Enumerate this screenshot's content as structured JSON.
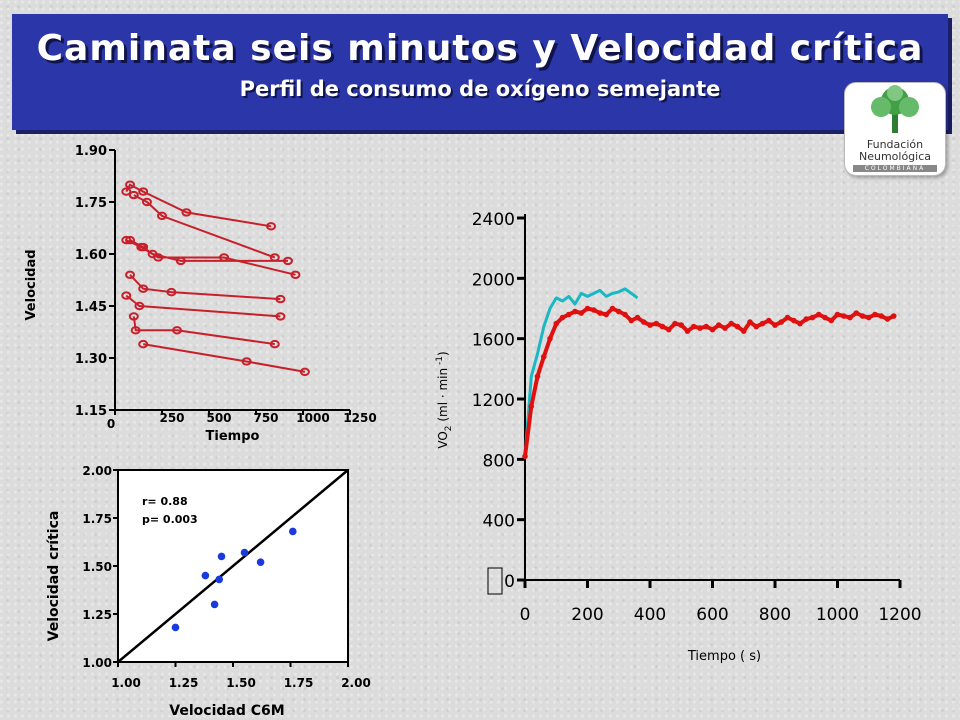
{
  "header": {
    "title": "Caminata seis minutos y Velocidad crítica",
    "subtitle": "Perfil de consumo de oxígeno semejante"
  },
  "logo": {
    "line1": "Fundación",
    "line2": "Neumológica",
    "line3": "COLOMBIANA",
    "icon": "tree-icon"
  },
  "colors": {
    "banner": "#2b36a8",
    "red": "#e01010",
    "darkred": "#c8202a",
    "cyan": "#1ab8c4",
    "blue": "#1a3adb"
  },
  "chart_data": [
    {
      "type": "scatter",
      "title": "",
      "xlabel": "Tiempo",
      "ylabel": "Velocidad",
      "xlim": [
        0,
        1250
      ],
      "ylim": [
        1.15,
        1.9
      ],
      "x_ticks": [
        "0",
        "250",
        "500",
        "750",
        "1000",
        "1250"
      ],
      "y_ticks": [
        "1.90",
        "1.75",
        "1.60",
        "1.45",
        "1.30",
        "1.15"
      ],
      "series": [
        {
          "points": [
            [
              60,
              1.78
            ],
            [
              80,
              1.8
            ],
            [
              150,
              1.78
            ],
            [
              380,
              1.72
            ],
            [
              830,
              1.68
            ]
          ]
        },
        {
          "points": [
            [
              100,
              1.77
            ],
            [
              170,
              1.75
            ],
            [
              250,
              1.71
            ],
            [
              850,
              1.59
            ]
          ]
        },
        {
          "points": [
            [
              80,
              1.64
            ],
            [
              150,
              1.62
            ],
            [
              200,
              1.6
            ],
            [
              350,
              1.58
            ],
            [
              920,
              1.58
            ]
          ]
        },
        {
          "points": [
            [
              60,
              1.64
            ],
            [
              140,
              1.62
            ],
            [
              230,
              1.59
            ],
            [
              580,
              1.59
            ],
            [
              960,
              1.54
            ]
          ]
        },
        {
          "points": [
            [
              80,
              1.54
            ],
            [
              150,
              1.5
            ],
            [
              300,
              1.49
            ],
            [
              880,
              1.47
            ]
          ]
        },
        {
          "points": [
            [
              60,
              1.48
            ],
            [
              130,
              1.45
            ],
            [
              880,
              1.42
            ]
          ]
        },
        {
          "points": [
            [
              100,
              1.42
            ],
            [
              110,
              1.38
            ],
            [
              330,
              1.38
            ],
            [
              850,
              1.34
            ]
          ]
        },
        {
          "points": [
            [
              150,
              1.34
            ],
            [
              700,
              1.29
            ],
            [
              1010,
              1.26
            ]
          ]
        }
      ]
    },
    {
      "type": "scatter",
      "title": "",
      "xlabel": "Velocidad C6M",
      "ylabel": "Velocidad crítica",
      "xlim": [
        1.0,
        2.0
      ],
      "ylim": [
        1.0,
        2.0
      ],
      "x_ticks": [
        "1.00",
        "1.25",
        "1.50",
        "1.75",
        "2.00"
      ],
      "y_ticks": [
        "2.00",
        "1.75",
        "1.50",
        "1.25",
        "1.00"
      ],
      "annotations": [
        "r= 0.88",
        "p= 0.003"
      ],
      "points": [
        [
          1.25,
          1.18
        ],
        [
          1.38,
          1.45
        ],
        [
          1.42,
          1.3
        ],
        [
          1.44,
          1.43
        ],
        [
          1.45,
          1.55
        ],
        [
          1.55,
          1.57
        ],
        [
          1.62,
          1.52
        ],
        [
          1.76,
          1.68
        ]
      ],
      "identity_line": [
        [
          1.0,
          1.0
        ],
        [
          2.0,
          2.0
        ]
      ]
    },
    {
      "type": "line",
      "title": "",
      "xlabel": "Tiempo ( s)",
      "ylabel": "VO",
      "ylabel_sub": "2",
      "ylabel_units": "(ml · min",
      "ylabel_units_sup": "-1",
      "ylabel_units_close": ")",
      "xlim": [
        0,
        1200
      ],
      "ylim": [
        0,
        2400
      ],
      "x_ticks": [
        "0",
        "200",
        "400",
        "600",
        "800",
        "1000",
        "1200"
      ],
      "y_ticks": [
        "2400",
        "2000",
        "1600",
        "1200",
        "800",
        "400",
        "0"
      ],
      "series": [
        {
          "color": "cyan",
          "x": [
            0,
            20,
            40,
            60,
            80,
            100,
            120,
            140,
            160,
            180,
            200,
            220,
            240,
            260,
            280,
            300,
            320,
            340,
            360
          ],
          "y": [
            820,
            1350,
            1500,
            1680,
            1800,
            1870,
            1850,
            1880,
            1830,
            1900,
            1880,
            1900,
            1920,
            1880,
            1900,
            1910,
            1930,
            1900,
            1870
          ]
        },
        {
          "color": "red",
          "x": [
            0,
            20,
            40,
            60,
            80,
            100,
            120,
            140,
            160,
            180,
            200,
            220,
            240,
            260,
            280,
            300,
            320,
            340,
            360,
            380,
            400,
            420,
            440,
            460,
            480,
            500,
            520,
            540,
            560,
            580,
            600,
            620,
            640,
            660,
            680,
            700,
            720,
            740,
            760,
            780,
            800,
            820,
            840,
            860,
            880,
            900,
            920,
            940,
            960,
            980,
            1000,
            1020,
            1040,
            1060,
            1080,
            1100,
            1120,
            1140,
            1160,
            1180
          ],
          "y": [
            820,
            1150,
            1350,
            1480,
            1600,
            1700,
            1740,
            1760,
            1780,
            1770,
            1800,
            1790,
            1770,
            1760,
            1800,
            1780,
            1760,
            1720,
            1740,
            1710,
            1690,
            1700,
            1680,
            1660,
            1700,
            1690,
            1650,
            1680,
            1670,
            1680,
            1660,
            1690,
            1670,
            1700,
            1680,
            1650,
            1710,
            1680,
            1700,
            1720,
            1690,
            1710,
            1740,
            1720,
            1700,
            1730,
            1740,
            1760,
            1740,
            1720,
            1760,
            1750,
            1740,
            1770,
            1750,
            1740,
            1760,
            1750,
            1730,
            1750
          ]
        }
      ]
    }
  ]
}
